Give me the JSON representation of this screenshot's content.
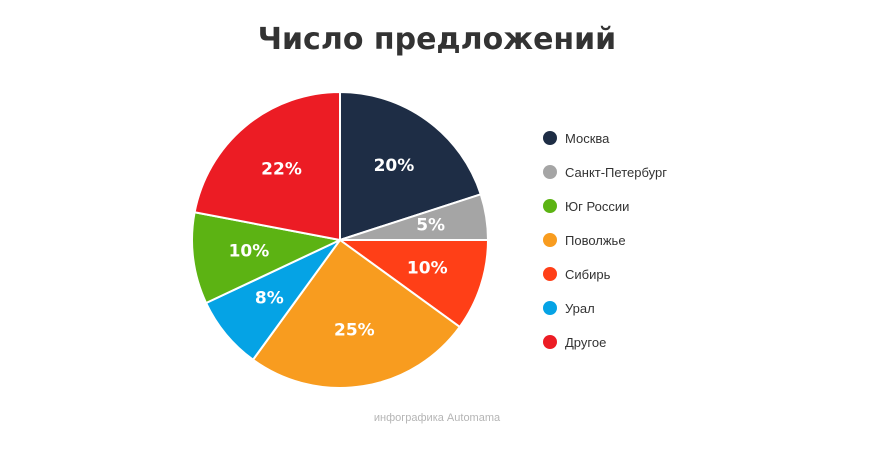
{
  "chart_data": {
    "type": "pie",
    "title": "Число предложений",
    "legend_position": "right",
    "slices": [
      {
        "name": "Москва",
        "value": 20,
        "label": "20%",
        "color": "#1e2d45"
      },
      {
        "name": "Санкт-Петербург",
        "value": 5,
        "label": "5%",
        "color": "#a5a5a5"
      },
      {
        "name": "Поволжье",
        "value": 25,
        "label": "25%",
        "color": "#f89c1f"
      },
      {
        "name": "Сибирь",
        "value": 10,
        "label": "10%",
        "color": "#ff3f17"
      },
      {
        "name": "Урал",
        "value": 8,
        "label": "8%",
        "color": "#05a3e5"
      },
      {
        "name": "Юг России",
        "value": 10,
        "label": "10%",
        "color": "#5cb313"
      },
      {
        "name": "Другое",
        "value": 22,
        "label": "22%",
        "color": "#ec1c24"
      }
    ],
    "pie_order": [
      "Москва",
      "Санкт-Петербург",
      "Сибирь",
      "Поволжье",
      "Урал",
      "Юг России",
      "Другое"
    ],
    "legend_order": [
      "Москва",
      "Санкт-Петербург",
      "Юг России",
      "Поволжье",
      "Сибирь",
      "Урал",
      "Другое"
    ]
  },
  "footer": {
    "credit": "инфографика Automama"
  }
}
